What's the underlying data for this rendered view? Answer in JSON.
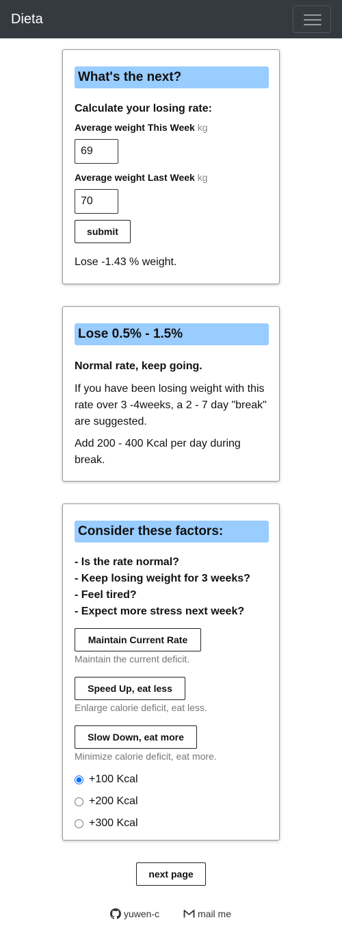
{
  "navbar": {
    "brand": "Dieta",
    "menu_icon": "hamburger-icon"
  },
  "calc_card": {
    "heading": "What's the next?",
    "subtitle": "Calculate your losing rate:",
    "this_week_label": "Average weight This Week",
    "this_week_unit": "kg",
    "this_week_value": "69",
    "last_week_label": "Average weight Last Week",
    "last_week_unit": "kg",
    "last_week_value": "70",
    "submit_label": "submit",
    "result": "Lose -1.43 % weight."
  },
  "rate_card": {
    "heading": "Lose 0.5% - 1.5%",
    "subtitle": "Normal rate, keep going.",
    "para1": "If you have been losing weight with this rate over 3 -4weeks, a 2 - 7 day \"break\" are suggested.",
    "para2": "Add 200 - 400 Kcal per day during break."
  },
  "factors_card": {
    "heading": "Consider these factors:",
    "questions": [
      "- Is the rate normal?",
      "- Keep losing weight for 3 weeks?",
      "- Feel tired?",
      "- Expect more stress next week?"
    ],
    "options": [
      {
        "button": "Maintain Current Rate",
        "desc": "Maintain the current deficit."
      },
      {
        "button": "Speed Up, eat less",
        "desc": "Enlarge calorie deficit, eat less."
      },
      {
        "button": "Slow Down, eat more",
        "desc": "Minimize calorie deficit, eat more."
      }
    ],
    "kcal_choices": [
      "+100 Kcal",
      "+200 Kcal",
      "+300 Kcal"
    ],
    "kcal_selected": "+100 Kcal"
  },
  "next_page_label": "next page",
  "footer": {
    "github_label": "yuwen-c",
    "github_icon": "github-icon",
    "mail_label": "mail me",
    "mail_icon": "mail-icon"
  },
  "colors": {
    "navbar": "#343a40",
    "heading_bg": "#99ccff",
    "radio_accent": "#0d6efd"
  }
}
